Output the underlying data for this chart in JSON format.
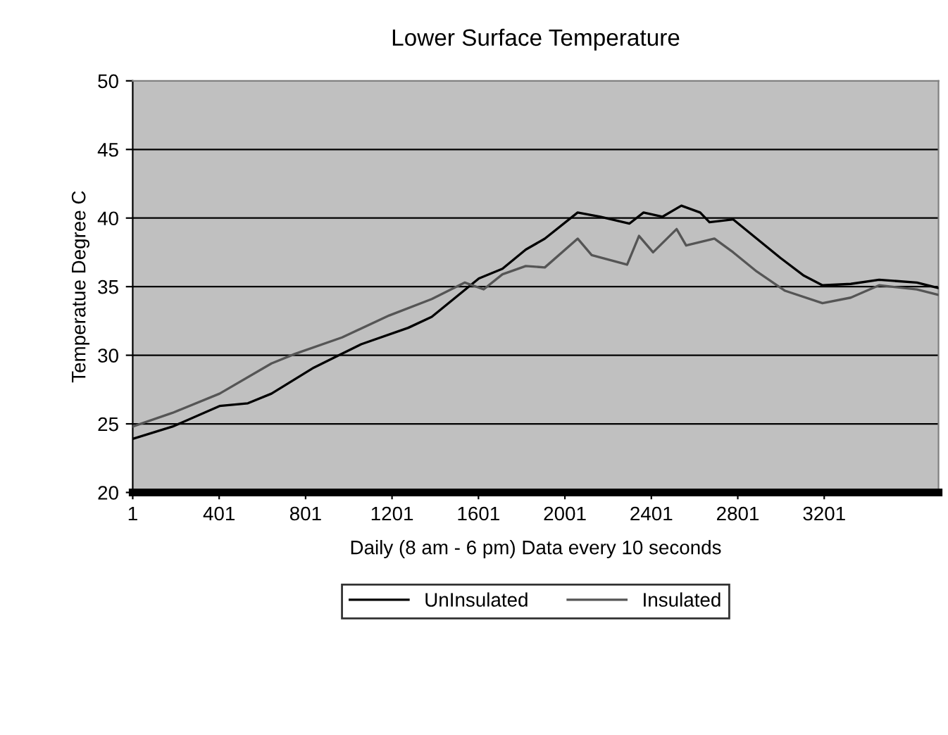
{
  "chart_data": {
    "type": "line",
    "title": "Lower Surface Temperature",
    "xlabel": "Daily (8 am - 6 pm) Data every 10 seconds",
    "ylabel": "Temperatue Degree C",
    "xlim": [
      1,
      3730
    ],
    "xticks": [
      1,
      401,
      801,
      1201,
      1601,
      2001,
      2401,
      2801,
      3201
    ],
    "ylim": [
      20,
      50
    ],
    "yticks": [
      20,
      25,
      30,
      35,
      40,
      45,
      50
    ],
    "grid": "y",
    "legend": "bottom",
    "marker": "none",
    "line_style": "solid",
    "series": [
      {
        "name": "UnInsulated",
        "color": "#000000",
        "x": [
          1,
          185,
          403,
          534,
          643,
          839,
          1058,
          1276,
          1385,
          1494,
          1603,
          1712,
          1820,
          1908,
          2060,
          2165,
          2300,
          2365,
          2453,
          2540,
          2627,
          2670,
          2780,
          2889,
          2998,
          3107,
          3193,
          3324,
          3455,
          3630,
          3730
        ],
        "values": [
          23.9,
          24.8,
          26.3,
          26.5,
          27.2,
          29.1,
          30.8,
          32.0,
          32.8,
          34.2,
          35.6,
          36.3,
          37.7,
          38.5,
          40.4,
          40.1,
          39.6,
          40.4,
          40.1,
          40.9,
          40.4,
          39.7,
          39.9,
          38.5,
          37.1,
          35.8,
          35.1,
          35.2,
          35.5,
          35.3,
          34.9
        ]
      },
      {
        "name": "Insulated",
        "color": "#555555",
        "x": [
          1,
          185,
          403,
          643,
          752,
          970,
          1188,
          1385,
          1538,
          1625,
          1712,
          1820,
          1908,
          2060,
          2125,
          2289,
          2344,
          2409,
          2518,
          2562,
          2693,
          2780,
          2889,
          3020,
          3193,
          3324,
          3455,
          3630,
          3730
        ],
        "values": [
          24.8,
          25.8,
          27.2,
          29.4,
          30.1,
          31.3,
          32.9,
          34.1,
          35.3,
          34.8,
          35.9,
          36.5,
          36.4,
          38.5,
          37.3,
          36.6,
          38.7,
          37.5,
          39.2,
          38.0,
          38.5,
          37.5,
          36.1,
          34.7,
          33.8,
          34.2,
          35.1,
          34.8,
          34.4
        ]
      }
    ]
  }
}
